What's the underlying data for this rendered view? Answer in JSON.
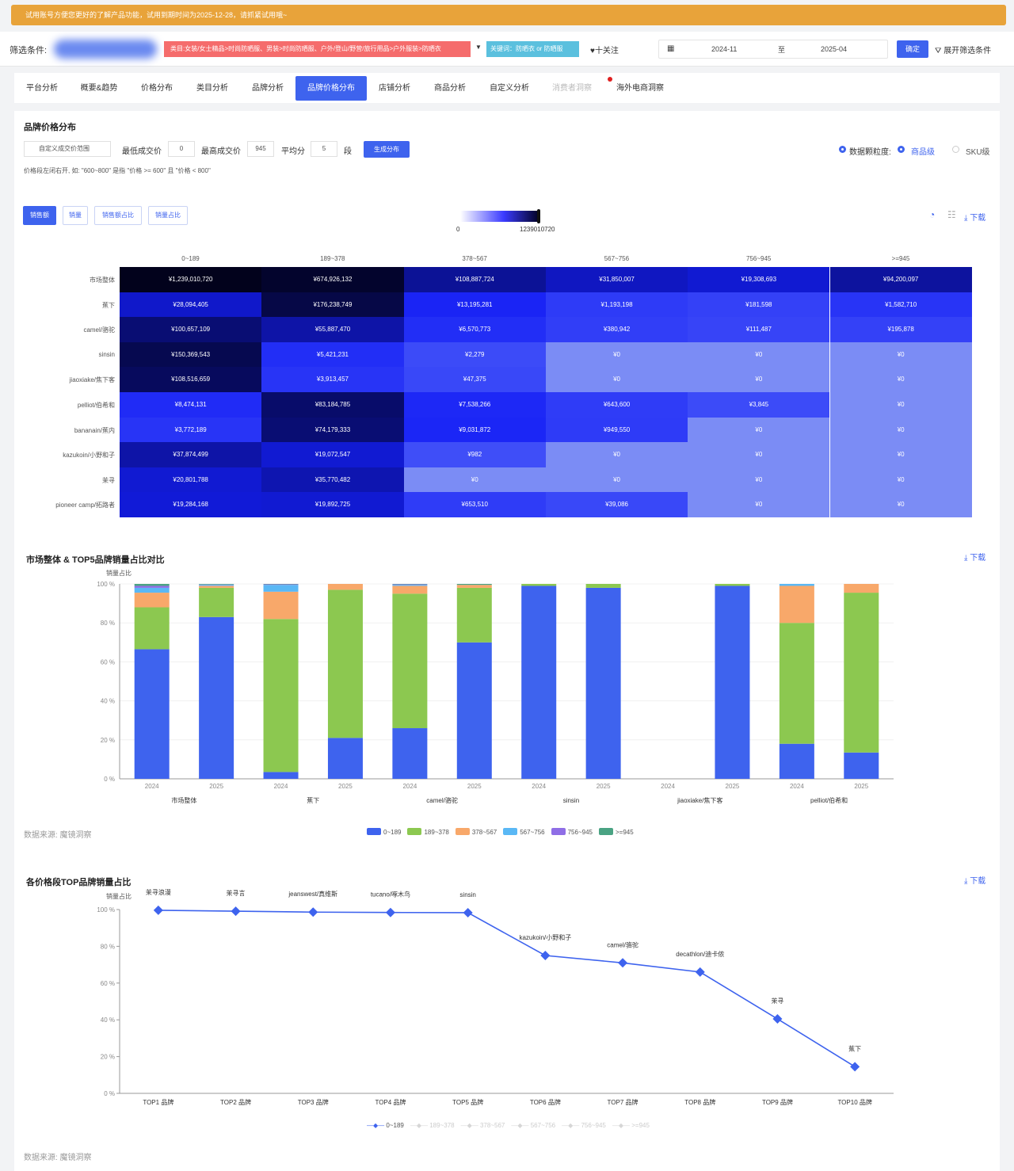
{
  "banner": {
    "text": "试用账号方便您更好的了解产品功能，试用到期时间为2025-12-28，请抓紧试用哦~"
  },
  "filter": {
    "label": "筛选条件:",
    "category_tag": "类目:女装/女士精品>时尚防晒服、男装>时尚防晒服、户外/登山/野营/旅行用品>户外服装>防晒衣",
    "keyword_tag": "关键词：防晒衣 or 防晒服",
    "follow": "♥十关注",
    "date_from": "2024-11",
    "date_sep": "至",
    "date_to": "2025-04",
    "confirm": "确定",
    "expand": "展开筛选条件"
  },
  "tabs": [
    {
      "label": "平台分析"
    },
    {
      "label": "概要&趋势"
    },
    {
      "label": "价格分布"
    },
    {
      "label": "类目分析"
    },
    {
      "label": "品牌分析"
    },
    {
      "label": "品牌价格分布"
    },
    {
      "label": "店铺分析"
    },
    {
      "label": "商品分析"
    },
    {
      "label": "自定义分析"
    },
    {
      "label": "消费者洞察"
    },
    {
      "label": "海外电商洞察"
    }
  ],
  "section1": {
    "title": "品牌价格分布",
    "range_select": "自定义成交价范围",
    "min_label": "最低成交价",
    "min_value": "0",
    "max_label": "最高成交价",
    "max_value": "945",
    "avg_label": "平均分",
    "avg_value": "5",
    "seg_label": "段",
    "generate": "生成分布",
    "note": "价格段左闭右开, 如: \"600~800\" 是指 \"价格 >= 600\" 且 \"价格 < 800\"",
    "granularity_label": "数据颗粒度:",
    "granularity_options": [
      "商品级",
      "SKU级"
    ],
    "metric_buttons": [
      "销售额",
      "销量",
      "销售额占比",
      "销量占比"
    ],
    "visualmap_min": "0",
    "visualmap_max": "1239010720",
    "download": "下载",
    "heatmap": {
      "columns": [
        "0~189",
        "189~378",
        "378~567",
        "567~756",
        "756~945",
        ">=945"
      ],
      "rows": [
        {
          "name": "市场整体",
          "cells": [
            "¥1,239,010,720",
            "¥674,926,132",
            "¥108,887,724",
            "¥31,850,007",
            "¥19,308,693",
            "¥94,200,097"
          ],
          "shade": [
            1.0,
            0.96,
            0.72,
            0.62,
            0.58,
            0.7
          ]
        },
        {
          "name": "蕉下",
          "cells": [
            "¥28,094,405",
            "¥176,238,749",
            "¥13,195,281",
            "¥1,193,198",
            "¥181,598",
            "¥1,582,710"
          ],
          "shade": [
            0.6,
            0.9,
            0.46,
            0.32,
            0.28,
            0.36
          ]
        },
        {
          "name": "camel/骆驼",
          "cells": [
            "¥100,657,109",
            "¥55,887,470",
            "¥6,570,773",
            "¥380,942",
            "¥111,487",
            "¥195,878"
          ],
          "shade": [
            0.8,
            0.68,
            0.4,
            0.3,
            0.26,
            0.28
          ]
        },
        {
          "name": "sinsin",
          "cells": [
            "¥150,369,543",
            "¥5,421,231",
            "¥2,279",
            "¥0",
            "¥0",
            "¥0"
          ],
          "shade": [
            0.88,
            0.4,
            0.22,
            0.0,
            0.0,
            0.0
          ]
        },
        {
          "name": "jiaoxiake/焦下客",
          "cells": [
            "¥108,516,659",
            "¥3,913,457",
            "¥47,375",
            "¥0",
            "¥0",
            "¥0"
          ],
          "shade": [
            0.85,
            0.36,
            0.24,
            0.0,
            0.0,
            0.0
          ]
        },
        {
          "name": "pelliot/伯希和",
          "cells": [
            "¥8,474,131",
            "¥83,184,785",
            "¥7,538,266",
            "¥643,600",
            "¥3,845",
            "¥0"
          ],
          "shade": [
            0.42,
            0.82,
            0.44,
            0.31,
            0.22,
            0.0
          ]
        },
        {
          "name": "bananain/蕉内",
          "cells": [
            "¥3,772,189",
            "¥74,179,333",
            "¥9,031,872",
            "¥949,550",
            "¥0",
            "¥0"
          ],
          "shade": [
            0.36,
            0.8,
            0.45,
            0.32,
            0.0,
            0.0
          ]
        },
        {
          "name": "kazukoin/小野和子",
          "cells": [
            "¥37,874,499",
            "¥19,072,547",
            "¥982",
            "¥0",
            "¥0",
            "¥0"
          ],
          "shade": [
            0.68,
            0.58,
            0.2,
            0.0,
            0.0,
            0.0
          ]
        },
        {
          "name": "茉寻",
          "cells": [
            "¥20,801,788",
            "¥35,770,482",
            "¥0",
            "¥0",
            "¥0",
            "¥0"
          ],
          "shade": [
            0.58,
            0.66,
            0.0,
            0.0,
            0.0,
            0.0
          ]
        },
        {
          "name": "pioneer camp/拓路者",
          "cells": [
            "¥19,284,168",
            "¥19,892,725",
            "¥653,510",
            "¥39,086",
            "¥0",
            "¥0"
          ],
          "shade": [
            0.57,
            0.58,
            0.31,
            0.24,
            0.0,
            0.0
          ]
        }
      ]
    }
  },
  "section2": {
    "title": "市场整体 & TOP5品牌销量占比对比",
    "download": "下载",
    "source": "数据来源: 魔镜洞察",
    "chart_data": {
      "type": "bar",
      "stacked": true,
      "ylabel": "销量占比",
      "ylim": [
        0,
        100
      ],
      "y_ticks": [
        "0 %",
        "20 %",
        "40 %",
        "60 %",
        "80 %",
        "100 %"
      ],
      "groups": [
        "市场整体",
        "蕉下",
        "camel/骆驼",
        "sinsin",
        "jiaoxiake/焦下客",
        "pelliot/伯希和"
      ],
      "categories": [
        "2024",
        "2025",
        "2024",
        "2025",
        "2024",
        "2025",
        "2024",
        "2025",
        "2024",
        "2025",
        "2024",
        "2025"
      ],
      "series": [
        {
          "name": "0~189",
          "color": "#3e63ee",
          "values": [
            66.5,
            83,
            3.5,
            21,
            26,
            70,
            99,
            98,
            0,
            99,
            18,
            13.5
          ]
        },
        {
          "name": "189~378",
          "color": "#8cc850",
          "values": [
            21.5,
            15,
            78.5,
            76,
            69,
            28,
            1,
            2,
            0,
            1,
            62,
            82
          ]
        },
        {
          "name": "378~567",
          "color": "#f8a86a",
          "values": [
            7.5,
            1,
            14,
            3,
            4,
            1.5,
            0,
            0,
            0,
            0,
            19,
            4.5
          ]
        },
        {
          "name": "567~756",
          "color": "#5ab8f5",
          "values": [
            2.5,
            0.5,
            3.5,
            0,
            0.5,
            0,
            0,
            0,
            0,
            0,
            1,
            0
          ]
        },
        {
          "name": "756~945",
          "color": "#8f6ee6",
          "values": [
            1,
            0.2,
            0.3,
            0,
            0.3,
            0,
            0,
            0,
            0,
            0,
            0,
            0
          ]
        },
        {
          "name": ">=945",
          "color": "#4aa383",
          "values": [
            1,
            0.3,
            0.2,
            0,
            0.2,
            0.5,
            0,
            0,
            0,
            0,
            0,
            0
          ]
        }
      ]
    }
  },
  "section3": {
    "title": "各价格段TOP品牌销量占比",
    "download": "下载",
    "source": "数据来源: 魔镜洞察",
    "chart_data": {
      "type": "line",
      "ylabel": "销量占比",
      "ylim": [
        0,
        100
      ],
      "y_ticks": [
        "0 %",
        "20 %",
        "40 %",
        "60 %",
        "80 %",
        "100 %"
      ],
      "categories": [
        "TOP1 品牌",
        "TOP2 品牌",
        "TOP3 品牌",
        "TOP4 品牌",
        "TOP5 品牌",
        "TOP6 品牌",
        "TOP7 品牌",
        "TOP8 品牌",
        "TOP9 品牌",
        "TOP10 品牌"
      ],
      "series": [
        {
          "name": "0~189",
          "color": "#3e63ee",
          "values": [
            99.6,
            99.1,
            98.6,
            98.4,
            98.3,
            75,
            71,
            66,
            40.5,
            14.5
          ],
          "point_labels": [
            "茉寻浪漫",
            "茉寻言",
            "jeanswest/真维斯",
            "tucano/啄木鸟",
            "sinsin",
            "kazukoin/小野和子",
            "camel/骆驼",
            "decathlon/迪卡侬",
            "茉寻",
            "蕉下"
          ]
        }
      ],
      "legend": [
        "0~189",
        "189~378",
        "378~567",
        "567~756",
        "756~945",
        ">=945"
      ]
    }
  }
}
